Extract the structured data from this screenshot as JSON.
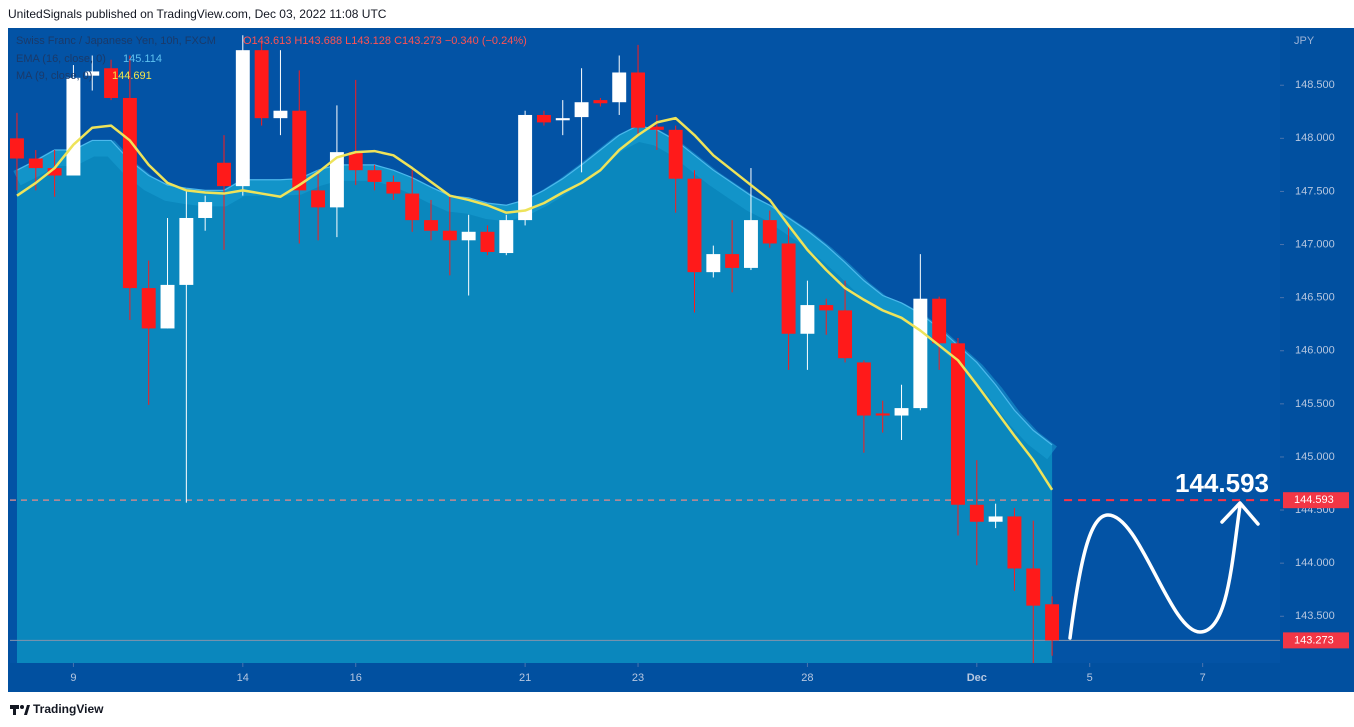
{
  "header": "UnitedSignals published on TradingView.com, Dec 03, 2022 11:08 UTC",
  "footer": "TradingView",
  "chart_data": {
    "type": "candlestick",
    "legend": {
      "symbol": "Swiss Franc / Japanese Yen, 10h, FXCM",
      "ohlc": "O143.613 H143.688 L143.128 C143.273 −0.340 (−0.24%)"
    },
    "currency": "JPY",
    "up_color": "#ffffff",
    "down_color": "#ff1a1a",
    "open": [
      148.0,
      147.81,
      147.72,
      147.65,
      148.59,
      148.66,
      148.38,
      146.59,
      146.21,
      146.62,
      147.25,
      147.77,
      147.55,
      148.83,
      148.19,
      148.26,
      147.51,
      147.35,
      147.87,
      147.7,
      147.59,
      147.48,
      147.23,
      147.13,
      147.04,
      147.12,
      146.92,
      147.23,
      148.22,
      148.17,
      148.2,
      148.36,
      148.34,
      148.62,
      148.11,
      148.08,
      147.62,
      146.74,
      146.91,
      146.78,
      147.23,
      147.01,
      146.16,
      146.43,
      146.38,
      145.89,
      145.41,
      145.39,
      145.46,
      146.49,
      146.07,
      144.55,
      144.39,
      144.44,
      143.95,
      143.613
    ],
    "high": [
      148.24,
      147.89,
      147.89,
      148.69,
      148.78,
      148.74,
      148.78,
      146.85,
      147.25,
      147.51,
      147.46,
      148.03,
      148.97,
      148.92,
      148.83,
      148.64,
      147.7,
      148.31,
      148.55,
      147.75,
      147.65,
      147.7,
      147.42,
      147.46,
      147.28,
      147.18,
      147.28,
      148.26,
      148.26,
      148.36,
      148.66,
      148.38,
      148.78,
      148.88,
      148.22,
      148.12,
      147.7,
      146.99,
      147.23,
      147.72,
      147.32,
      147.18,
      146.66,
      146.49,
      146.66,
      145.91,
      145.53,
      145.68,
      146.91,
      146.51,
      146.12,
      144.97,
      144.56,
      144.52,
      144.4,
      143.688
    ],
    "low": [
      147.51,
      147.51,
      147.45,
      147.65,
      148.45,
      148.36,
      146.29,
      145.49,
      146.21,
      144.57,
      147.13,
      146.95,
      147.46,
      148.12,
      148.03,
      147.01,
      147.04,
      147.07,
      147.56,
      147.51,
      147.42,
      147.12,
      147.04,
      146.71,
      146.52,
      146.9,
      146.9,
      147.18,
      148.12,
      148.03,
      147.68,
      148.3,
      148.22,
      148.03,
      147.89,
      147.3,
      146.36,
      146.69,
      146.55,
      146.76,
      146.97,
      145.82,
      145.82,
      146.15,
      145.89,
      145.04,
      145.23,
      145.16,
      145.44,
      145.82,
      144.26,
      143.98,
      144.33,
      143.74,
      143.06,
      143.128
    ],
    "close": [
      147.81,
      147.72,
      147.65,
      148.57,
      148.63,
      148.38,
      146.59,
      146.21,
      146.62,
      147.25,
      147.4,
      147.55,
      148.83,
      148.19,
      148.26,
      147.51,
      147.35,
      147.87,
      147.7,
      147.59,
      147.48,
      147.23,
      147.13,
      147.04,
      147.12,
      146.93,
      147.23,
      148.22,
      148.15,
      148.19,
      148.34,
      148.33,
      148.62,
      148.1,
      148.08,
      147.62,
      146.74,
      146.91,
      146.78,
      147.23,
      147.01,
      146.16,
      146.43,
      146.38,
      145.93,
      145.39,
      145.39,
      145.46,
      146.49,
      146.07,
      144.55,
      144.39,
      144.44,
      143.95,
      143.6,
      143.273
    ],
    "series": [
      {
        "name": "EMA (16, close, 0)",
        "color": "#4cb8ec",
        "values": [
          147.7,
          147.79,
          147.89,
          147.89,
          147.98,
          147.98,
          147.79,
          147.65,
          147.56,
          147.53,
          147.51,
          147.51,
          147.61,
          147.61,
          147.61,
          147.62,
          147.7,
          147.75,
          147.75,
          147.75,
          147.7,
          147.63,
          147.54,
          147.46,
          147.44,
          147.39,
          147.37,
          147.42,
          147.51,
          147.62,
          147.75,
          147.89,
          148.03,
          148.12,
          148.08,
          147.98,
          147.84,
          147.7,
          147.58,
          147.46,
          147.37,
          147.25,
          147.13,
          146.99,
          146.83,
          146.66,
          146.52,
          146.45,
          146.35,
          146.21,
          146.05,
          145.89,
          145.68,
          145.44,
          145.25,
          145.114
        ]
      },
      {
        "name": "MA (9, close, 0)",
        "color": "#eee35a",
        "values": [
          147.46,
          147.58,
          147.72,
          147.94,
          148.1,
          148.12,
          147.98,
          147.75,
          147.58,
          147.51,
          147.49,
          147.48,
          147.51,
          147.48,
          147.45,
          147.56,
          147.68,
          147.82,
          147.87,
          147.88,
          147.84,
          147.72,
          147.59,
          147.46,
          147.42,
          147.37,
          147.3,
          147.32,
          147.39,
          147.49,
          147.58,
          147.7,
          147.89,
          148.03,
          148.15,
          148.19,
          148.03,
          147.84,
          147.7,
          147.56,
          147.42,
          147.18,
          146.95,
          146.76,
          146.59,
          146.48,
          146.38,
          146.31,
          146.19,
          146.05,
          145.91,
          145.68,
          145.44,
          145.2,
          144.97,
          144.691
        ]
      }
    ],
    "target_level": 144.593,
    "xlim": [
      -0.37,
      67.11
    ],
    "xticks": [
      {
        "value": 3,
        "label": "9"
      },
      {
        "value": 12,
        "label": "14"
      },
      {
        "value": 18,
        "label": "16"
      },
      {
        "value": 27,
        "label": "21"
      },
      {
        "value": 33,
        "label": "23"
      },
      {
        "value": 42,
        "label": "28"
      },
      {
        "value": 51,
        "label": "Dec"
      },
      {
        "value": 57,
        "label": "5"
      },
      {
        "value": 63,
        "label": "7"
      }
    ],
    "ylim": [
      143.06,
      149.02
    ],
    "yticks": [
      {
        "value": 148.5,
        "label": "148.500"
      },
      {
        "value": 148,
        "label": "148.000"
      },
      {
        "value": 147.5,
        "label": "147.500"
      },
      {
        "value": 147,
        "label": "147.000"
      },
      {
        "value": 146.5,
        "label": "146.500"
      },
      {
        "value": 146,
        "label": "146.000"
      },
      {
        "value": 145.5,
        "label": "145.500"
      },
      {
        "value": 145,
        "label": "145.000"
      },
      {
        "value": 144.5,
        "label": "144.500"
      },
      {
        "value": 144,
        "label": "144.000"
      },
      {
        "value": 143.5,
        "label": "143.500"
      }
    ]
  }
}
